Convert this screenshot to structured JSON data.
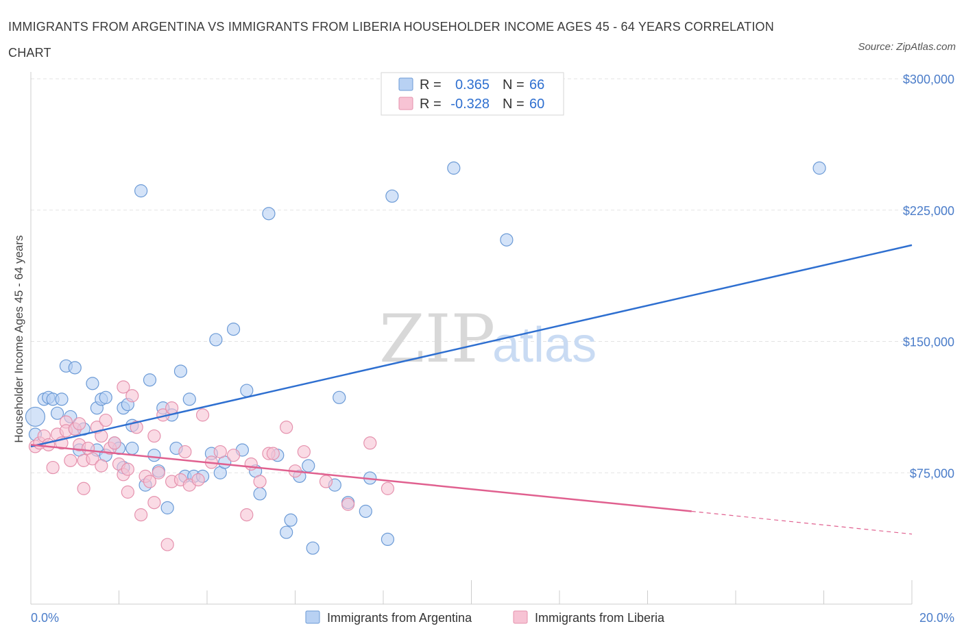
{
  "title": "IMMIGRANTS FROM ARGENTINA VS IMMIGRANTS FROM LIBERIA HOUSEHOLDER INCOME AGES 45 - 64 YEARS CORRELATION CHART",
  "source": "Source: ZipAtlas.com",
  "watermark": {
    "zip": "ZIP",
    "atlas": "atlas"
  },
  "legend": {
    "rows": [
      {
        "r_label": "R =",
        "r_value": "0.365",
        "n_label": "N =",
        "n_value": "66"
      },
      {
        "r_label": "R =",
        "r_value": "-0.328",
        "n_label": "N =",
        "n_value": "60"
      }
    ]
  },
  "bottom_legend": [
    "Immigrants from Argentina",
    "Immigrants from Liberia"
  ],
  "colors": {
    "argentina_fill": "#b8d1f3",
    "argentina_stroke": "#6b9ad6",
    "argentina_line": "#2e6fd0",
    "liberia_fill": "#f7c3d4",
    "liberia_stroke": "#e591ad",
    "liberia_line": "#e0608f",
    "grid": "#e3e3e3",
    "tick_label": "#4a7cc9"
  },
  "chart_data": {
    "type": "scatter",
    "title": "IMMIGRANTS FROM ARGENTINA VS IMMIGRANTS FROM LIBERIA HOUSEHOLDER INCOME AGES 45 - 64 YEARS CORRELATION CHART",
    "xlabel": "",
    "ylabel": "Householder Income Ages 45 - 64 years",
    "xlim": [
      0,
      20
    ],
    "ylim": [
      0,
      300000
    ],
    "x_tick_labels": [
      "0.0%",
      "20.0%"
    ],
    "y_ticks": [
      75000,
      150000,
      225000,
      300000
    ],
    "y_tick_labels": [
      "$75,000",
      "$150,000",
      "$225,000",
      "$300,000"
    ],
    "grid": true,
    "legend_position": "top-center",
    "series": [
      {
        "name": "Immigrants from Argentina",
        "R": 0.365,
        "N": 66,
        "trend": {
          "x": [
            0,
            20
          ],
          "y": [
            90000,
            205000
          ]
        },
        "points": [
          [
            0.1,
            107000
          ],
          [
            0.1,
            97000
          ],
          [
            0.3,
            117000
          ],
          [
            0.4,
            118000
          ],
          [
            0.5,
            117000
          ],
          [
            0.7,
            117000
          ],
          [
            0.6,
            109000
          ],
          [
            0.8,
            136000
          ],
          [
            1.0,
            135000
          ],
          [
            0.9,
            107000
          ],
          [
            1.0,
            100000
          ],
          [
            1.2,
            100000
          ],
          [
            1.1,
            88000
          ],
          [
            1.4,
            126000
          ],
          [
            1.5,
            112000
          ],
          [
            1.6,
            117000
          ],
          [
            1.7,
            118000
          ],
          [
            1.5,
            88000
          ],
          [
            1.7,
            85000
          ],
          [
            1.9,
            92000
          ],
          [
            2.0,
            89000
          ],
          [
            2.1,
            112000
          ],
          [
            2.2,
            114000
          ],
          [
            2.3,
            102000
          ],
          [
            2.3,
            89000
          ],
          [
            2.1,
            78000
          ],
          [
            2.5,
            236000
          ],
          [
            2.6,
            68000
          ],
          [
            2.7,
            128000
          ],
          [
            2.8,
            85000
          ],
          [
            2.9,
            76000
          ],
          [
            3.0,
            112000
          ],
          [
            3.1,
            55000
          ],
          [
            3.2,
            108000
          ],
          [
            3.3,
            89000
          ],
          [
            3.4,
            133000
          ],
          [
            3.6,
            117000
          ],
          [
            3.5,
            73000
          ],
          [
            3.7,
            73000
          ],
          [
            3.9,
            73000
          ],
          [
            4.1,
            86000
          ],
          [
            4.2,
            151000
          ],
          [
            4.3,
            75000
          ],
          [
            4.4,
            81000
          ],
          [
            4.6,
            157000
          ],
          [
            4.8,
            88000
          ],
          [
            4.9,
            122000
          ],
          [
            5.1,
            76000
          ],
          [
            5.2,
            63000
          ],
          [
            5.4,
            223000
          ],
          [
            5.6,
            85000
          ],
          [
            5.8,
            41000
          ],
          [
            5.9,
            48000
          ],
          [
            6.1,
            73000
          ],
          [
            6.3,
            79000
          ],
          [
            6.4,
            32000
          ],
          [
            6.9,
            68000
          ],
          [
            7.0,
            118000
          ],
          [
            7.2,
            58000
          ],
          [
            7.6,
            53000
          ],
          [
            7.7,
            72000
          ],
          [
            8.1,
            37000
          ],
          [
            8.2,
            233000
          ],
          [
            9.6,
            249000
          ],
          [
            10.8,
            208000
          ],
          [
            17.9,
            249000
          ]
        ]
      },
      {
        "name": "Immigrants from Liberia",
        "R": -0.328,
        "N": 60,
        "trend": {
          "x": [
            0,
            15
          ],
          "y": [
            91000,
            53000
          ]
        },
        "trend_dashed": {
          "x": [
            15,
            20
          ],
          "y": [
            53000,
            40000
          ]
        },
        "points": [
          [
            0.1,
            90000
          ],
          [
            0.2,
            92000
          ],
          [
            0.3,
            96000
          ],
          [
            0.4,
            91000
          ],
          [
            0.5,
            78000
          ],
          [
            0.6,
            97000
          ],
          [
            0.7,
            92000
          ],
          [
            0.8,
            104000
          ],
          [
            0.8,
            99000
          ],
          [
            0.9,
            82000
          ],
          [
            1.0,
            100000
          ],
          [
            1.1,
            103000
          ],
          [
            1.1,
            91000
          ],
          [
            1.2,
            82000
          ],
          [
            1.2,
            66000
          ],
          [
            1.3,
            89000
          ],
          [
            1.4,
            83000
          ],
          [
            1.5,
            101000
          ],
          [
            1.6,
            96000
          ],
          [
            1.6,
            79000
          ],
          [
            1.7,
            105000
          ],
          [
            1.8,
            89000
          ],
          [
            1.9,
            92000
          ],
          [
            2.0,
            80000
          ],
          [
            2.1,
            74000
          ],
          [
            2.1,
            124000
          ],
          [
            2.2,
            77000
          ],
          [
            2.2,
            64000
          ],
          [
            2.3,
            119000
          ],
          [
            2.4,
            101000
          ],
          [
            2.5,
            51000
          ],
          [
            2.6,
            73000
          ],
          [
            2.7,
            70000
          ],
          [
            2.8,
            58000
          ],
          [
            2.8,
            96000
          ],
          [
            2.9,
            75000
          ],
          [
            3.0,
            108000
          ],
          [
            3.1,
            34000
          ],
          [
            3.2,
            112000
          ],
          [
            3.2,
            70000
          ],
          [
            3.4,
            71000
          ],
          [
            3.5,
            87000
          ],
          [
            3.6,
            68000
          ],
          [
            3.8,
            71000
          ],
          [
            3.9,
            108000
          ],
          [
            4.1,
            81000
          ],
          [
            4.3,
            87000
          ],
          [
            4.6,
            85000
          ],
          [
            4.9,
            51000
          ],
          [
            5.0,
            80000
          ],
          [
            5.2,
            70000
          ],
          [
            5.4,
            86000
          ],
          [
            5.5,
            86000
          ],
          [
            5.8,
            101000
          ],
          [
            6.0,
            76000
          ],
          [
            6.2,
            87000
          ],
          [
            6.7,
            70000
          ],
          [
            7.2,
            57000
          ],
          [
            7.7,
            92000
          ],
          [
            8.1,
            66000
          ]
        ]
      }
    ]
  }
}
